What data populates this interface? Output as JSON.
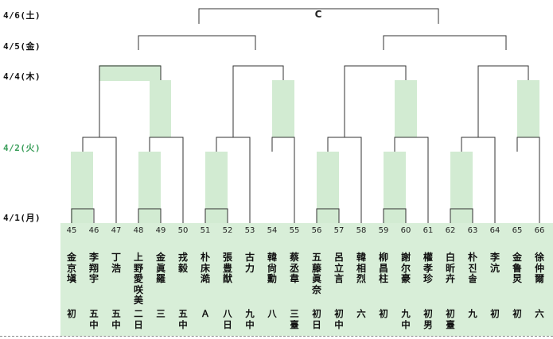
{
  "dates": {
    "d1": "4/6(土)",
    "d2": "4/5(金)",
    "d3": "4/4(木)",
    "d4": "4/2(火)",
    "d5": "4/1(月)"
  },
  "final_label": "C",
  "players": [
    {
      "num": "45",
      "name": "金京塡",
      "rank": "初"
    },
    {
      "num": "46",
      "name": "李翔宇",
      "rank": "五中"
    },
    {
      "num": "47",
      "name": "丁浩",
      "rank": "五中"
    },
    {
      "num": "48",
      "name": "上野愛咲美",
      "rank": "二日"
    },
    {
      "num": "49",
      "name": "金眞羅",
      "rank": "三"
    },
    {
      "num": "50",
      "name": "戎毅",
      "rank": "五中"
    },
    {
      "num": "51",
      "name": "朴床澔",
      "rank": "Ａ"
    },
    {
      "num": "52",
      "name": "張豊猷",
      "rank": "八日"
    },
    {
      "num": "53",
      "name": "古力",
      "rank": "九中"
    },
    {
      "num": "54",
      "name": "韓尙勳",
      "rank": "八"
    },
    {
      "num": "55",
      "name": "蔡丞韋",
      "rank": "三臺"
    },
    {
      "num": "56",
      "name": "五藤眞奈",
      "rank": "初日"
    },
    {
      "num": "57",
      "name": "呂立言",
      "rank": "初中"
    },
    {
      "num": "58",
      "name": "韓相烈",
      "rank": "六"
    },
    {
      "num": "59",
      "name": "柳昌柱",
      "rank": "初"
    },
    {
      "num": "60",
      "name": "謝尔豪",
      "rank": "九中"
    },
    {
      "num": "61",
      "name": "權孝珍",
      "rank": "初男"
    },
    {
      "num": "62",
      "name": "白昕卉",
      "rank": "初臺"
    },
    {
      "num": "63",
      "name": "朴진솔",
      "rank": "九"
    },
    {
      "num": "64",
      "name": "李沆",
      "rank": "初"
    },
    {
      "num": "65",
      "name": "金鲁炅",
      "rank": "初"
    },
    {
      "num": "66",
      "name": "徐仲爾",
      "rank": "六"
    }
  ],
  "colors": {
    "highlight": "#d2ebd2",
    "band": "#d8eed8",
    "line": "#333333",
    "accent_date": "#3a9e5a"
  }
}
